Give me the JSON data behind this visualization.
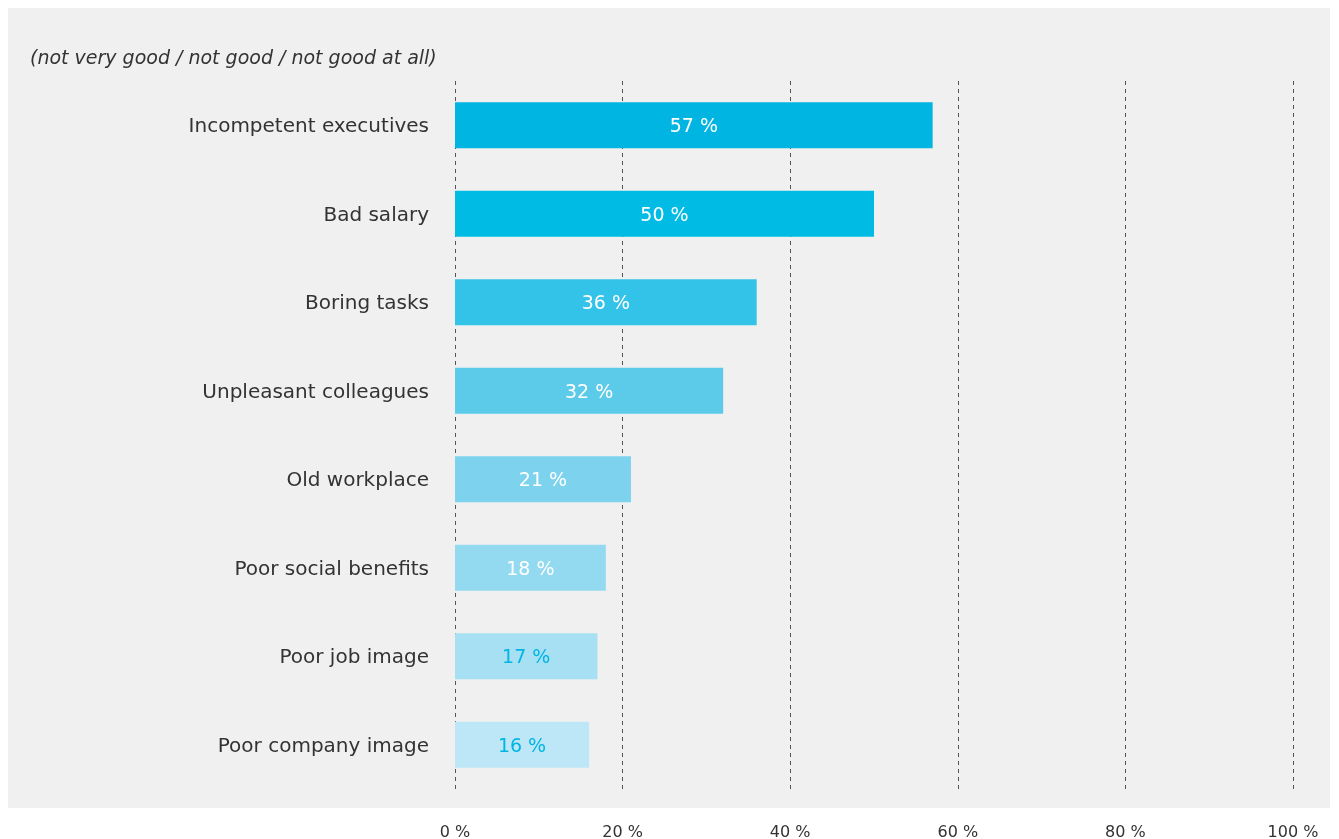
{
  "chart_data": {
    "type": "bar",
    "orientation": "horizontal",
    "subtitle": "(not very good / not good / not good at all)",
    "categories": [
      "Incompetent executives",
      "Bad salary",
      "Boring tasks",
      "Unpleasant colleagues",
      "Old workplace",
      "Poor social benefits",
      "Poor job image",
      "Poor company image"
    ],
    "values": [
      57,
      50,
      36,
      32,
      21,
      18,
      17,
      16
    ],
    "value_labels": [
      "57 %",
      "50 %",
      "36 %",
      "32 %",
      "21 %",
      "18 %",
      "17 %",
      "16 %"
    ],
    "colors": [
      "#00b5e2",
      "#00bce4",
      "#33c3e8",
      "#5ccbea",
      "#7dd3ee",
      "#93daf1",
      "#a8e0f3",
      "#bde7f6"
    ],
    "xlim": [
      0,
      100
    ],
    "xticks": [
      {
        "value": 0,
        "label": "0 %"
      },
      {
        "value": 20,
        "label": "20 %"
      },
      {
        "value": 40,
        "label": "40 %"
      },
      {
        "value": 60,
        "label": "60 %"
      },
      {
        "value": 80,
        "label": "80 %"
      },
      {
        "value": 100,
        "label": "100 %"
      }
    ],
    "grid": "x"
  }
}
